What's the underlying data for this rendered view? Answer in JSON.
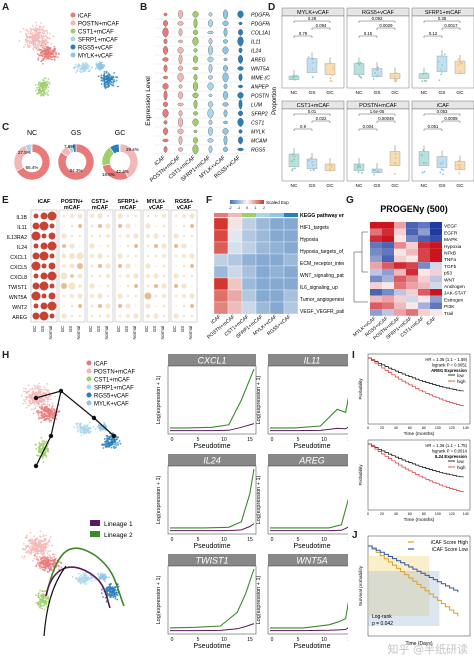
{
  "cell_types": [
    "iCAF",
    "POSTN+mCAF",
    "CST1+mCAF",
    "SFRP1+mCAF",
    "RGS5+vCAF",
    "MYLK+vCAF"
  ],
  "colors": {
    "iCAF": "#e87a7a",
    "POSTN+mCAF": "#f2b8b8",
    "CST1+mCAF": "#9ecf6a",
    "SFRP1+mCAF": "#a9d6ec",
    "RGS5+vCAF": "#2a7fb8",
    "MYLK+vCAF": "#8ec7e5"
  },
  "panels": {
    "A": "A",
    "B": "B",
    "C": "C",
    "D": "D",
    "E": "E",
    "F": "F",
    "G": "G",
    "H": "H",
    "I": "I",
    "J": "J"
  },
  "panelB": {
    "ylabel": "Expression Level",
    "genes": [
      "PDGFRA",
      "PDGFRB",
      "COL1A1",
      "IL11",
      "IL24",
      "AREG",
      "WNT5A",
      "MME (CD10)",
      "ANPEP (CD13)",
      "POSTN",
      "LUM",
      "SFRP2",
      "CST1",
      "MYLK",
      "MCAM",
      "RGS5"
    ],
    "xcats": [
      "iCAF",
      "POSTN+mCAF",
      "CST1+mCAF",
      "SFRP1+mCAF",
      "MYLK+vCAF",
      "RGS5+vCAF"
    ]
  },
  "panelC": {
    "groups": [
      "NC",
      "GS",
      "GC"
    ],
    "values": {
      "NC": [
        "66.4%",
        "27.5%",
        "5.3%",
        "0.6%"
      ],
      "GS": [
        "84.3%",
        "7.8%",
        "4.5%"
      ],
      "GC": [
        "42.4%",
        "29.4%",
        "18.6%",
        "8.7%"
      ]
    }
  },
  "panelD": {
    "titles": [
      "MYLK+vCAF",
      "RGS5+vCAF",
      "SFRP1+mCAF",
      "CST1+mCAF",
      "POSTN+mCAF",
      "iCAF"
    ],
    "ylabel": "Proportion",
    "xcats": [
      "NC",
      "GS",
      "GC"
    ],
    "pvals": [
      [
        "0.79",
        "0.094",
        "0.28"
      ],
      [
        "0.15",
        "0.0029",
        "0.092"
      ],
      [
        "0.12",
        "0.0017",
        "0.38"
      ],
      [
        "0.9",
        "0.022",
        "0.01"
      ],
      [
        "0.004",
        "0.00049",
        "1.6e-05"
      ],
      [
        "0.051",
        "0.0009",
        "0.053"
      ]
    ]
  },
  "panelE": {
    "groups": [
      "iCAF",
      "POSTN+\nmCAF",
      "CST1+\nmCAF",
      "SFRP1+\nmCAF",
      "MYLK+\nvCAF",
      "RGS5+\nvCAF"
    ],
    "group_lines": [
      [
        "iCAF",
        ""
      ],
      [
        "POSTN+",
        "mCAF"
      ],
      [
        "CST1+",
        "mCAF"
      ],
      [
        "SFRP1+",
        "mCAF"
      ],
      [
        "MYLK+",
        "vCAF"
      ],
      [
        "RGS5+",
        "vCAF"
      ]
    ],
    "genes": [
      "IL1B",
      "IL11",
      "IL13RA2",
      "IL24",
      "CXCL1",
      "CXCL5",
      "CXCL8",
      "TWIST1",
      "WNT5A",
      "WNT2",
      "AREG"
    ],
    "xcats": [
      "GC",
      "GS",
      "Normal"
    ],
    "legend_pct": "pct.exp",
    "legend_avg": "avg.exp"
  },
  "panelF": {
    "title": "KEGG pathway enrichment",
    "legend": "Scaled Exp",
    "legend_ticks": [
      "-2",
      "-1",
      "0",
      "1",
      "2"
    ],
    "pathways": [
      "HIF1_targets",
      "Hypoxia",
      "Hypoxia_targets_of_VHL",
      "ECM_receptor_interaction",
      "WNT_signaling_pathway",
      "IL6_signaling_up",
      "Tumor_angiogenesis_up",
      "VEGF_VEGFR_pathway"
    ],
    "xcats": [
      "iCAF",
      "POSTN+mCAF",
      "CST1+mCAF",
      "SFRP1+mCAF",
      "MYLK+vCAF",
      "RGS5+vCAF"
    ]
  },
  "panelG": {
    "title": "PROGENy (500)",
    "pathways": [
      "VEGF",
      "EGFR",
      "MAPK",
      "Hypoxia",
      "NFkB",
      "TNFa",
      "TGFb",
      "p53",
      "WNT",
      "Androgen",
      "JAK-STAT",
      "Estrogen",
      "PI3K",
      "Trail"
    ],
    "xcats": [
      "MYLK+vCAF",
      "RGS5+vCAF",
      "POSTN+mCAF",
      "SFRP1+mCAF",
      "CST1+mCAF",
      "iCAF"
    ]
  },
  "panelH": {
    "lineages": [
      "Lineage 1",
      "Lineage 2"
    ],
    "genes": [
      "CXCL1",
      "IL11",
      "IL24",
      "AREG",
      "TWIST1",
      "WNT5A"
    ],
    "xlabel": "Pseudotime",
    "ylabel": "Log(expression + 1)",
    "xticks": [
      "0",
      "5",
      "10",
      "15"
    ]
  },
  "panelI": {
    "top": {
      "stats": [
        "HR = 1.36 (1.1 − 1.59)",
        "logrank P = 0.0051",
        "AREG Expression"
      ],
      "legend": [
        "low",
        "high"
      ]
    },
    "bottom": {
      "stats": [
        "HR = 1.36 (1.1 − 1.75)",
        "logrank P = 0.0014",
        "IL24 Expression"
      ],
      "legend": [
        "low",
        "high"
      ]
    },
    "ylabel": "Probability",
    "xlabel": "Time (months)",
    "xticks": [
      "0",
      "20",
      "40",
      "60",
      "80",
      "100",
      "120",
      "140"
    ]
  },
  "panelJ": {
    "legend": [
      "iCAF Score",
      "High",
      "iCAF Score",
      "Low"
    ],
    "ylabel": "Survival probability",
    "xlabel": "Time (Days)",
    "stats": [
      "Log-rank",
      "p = 0.042"
    ]
  },
  "watermark": "知乎 @半纸研读"
}
